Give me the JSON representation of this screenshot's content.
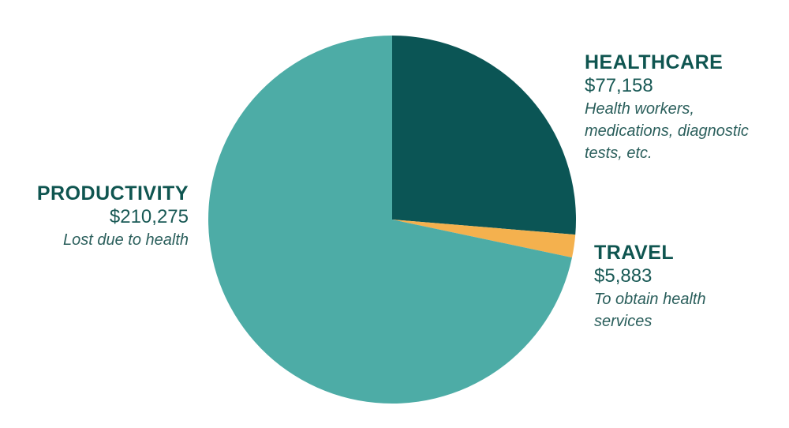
{
  "chart_data": {
    "type": "pie",
    "start_angle": "12 o'clock",
    "direction": "clockwise",
    "slices": [
      {
        "label": "HEALTHCARE",
        "value": 77158,
        "value_text": "$77,158",
        "description": "Health workers, medications, diagnostic tests, etc.",
        "color": "#0b5555"
      },
      {
        "label": "TRAVEL",
        "value": 5883,
        "value_text": "$5,883",
        "description": "To obtain health services",
        "color": "#f4b14e"
      },
      {
        "label": "PRODUCTIVITY",
        "value": 210275,
        "value_text": "$210,275",
        "description": "Lost due to health",
        "color": "#4daca6"
      }
    ]
  }
}
